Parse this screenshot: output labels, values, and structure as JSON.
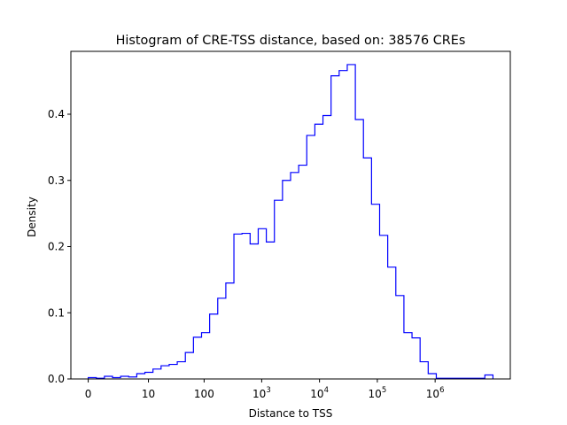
{
  "chart_data": {
    "type": "histogram",
    "title": "Histogram of CRE-TSS distance, based on: 38576 CREs",
    "xlabel": "Distance to TSS",
    "ylabel": "Density",
    "x_scale": "log(x+1)",
    "xlim": [
      -0.3,
      7.3
    ],
    "ylim": [
      0,
      0.495
    ],
    "x_ticks": [
      {
        "value": 0,
        "label": "0",
        "sup": ""
      },
      {
        "value": 10,
        "label": "10",
        "sup": ""
      },
      {
        "value": 100,
        "label": "100",
        "sup": ""
      },
      {
        "value": 1000,
        "label": "10",
        "sup": "3"
      },
      {
        "value": 10000,
        "label": "10",
        "sup": "4"
      },
      {
        "value": 100000,
        "label": "10",
        "sup": "5"
      },
      {
        "value": 1000000,
        "label": "10",
        "sup": "6"
      }
    ],
    "y_ticks": [
      {
        "value": 0.0,
        "label": "0.0"
      },
      {
        "value": 0.1,
        "label": "0.1"
      },
      {
        "value": 0.2,
        "label": "0.2"
      },
      {
        "value": 0.3,
        "label": "0.3"
      },
      {
        "value": 0.4,
        "label": "0.4"
      }
    ],
    "bin_edges_log": [
      0,
      0.14,
      0.28,
      0.42,
      0.56,
      0.7,
      0.84,
      0.98,
      1.12,
      1.26,
      1.4,
      1.54,
      1.68,
      1.82,
      1.96,
      2.1,
      2.24,
      2.38,
      2.52,
      2.66,
      2.8,
      2.94,
      3.08,
      3.22,
      3.36,
      3.5,
      3.64,
      3.78,
      3.92,
      4.06,
      4.2,
      4.34,
      4.48,
      4.62,
      4.76,
      4.9,
      5.04,
      5.18,
      5.32,
      5.46,
      5.6,
      5.74,
      5.88,
      6.02,
      6.16,
      6.3,
      6.44,
      6.58,
      6.72,
      6.86,
      7.0
    ],
    "densities": [
      0.002,
      0.001,
      0.004,
      0.002,
      0.004,
      0.003,
      0.008,
      0.01,
      0.015,
      0.02,
      0.022,
      0.026,
      0.04,
      0.063,
      0.07,
      0.098,
      0.122,
      0.145,
      0.219,
      0.22,
      0.204,
      0.227,
      0.207,
      0.27,
      0.3,
      0.312,
      0.323,
      0.368,
      0.385,
      0.398,
      0.458,
      0.466,
      0.475,
      0.392,
      0.334,
      0.264,
      0.217,
      0.169,
      0.126,
      0.07,
      0.062,
      0.026,
      0.008,
      0.001,
      0.001,
      0.001,
      0.001,
      0.001,
      0.001,
      0.006
    ],
    "line_color": "#0000ff",
    "grid": false
  }
}
